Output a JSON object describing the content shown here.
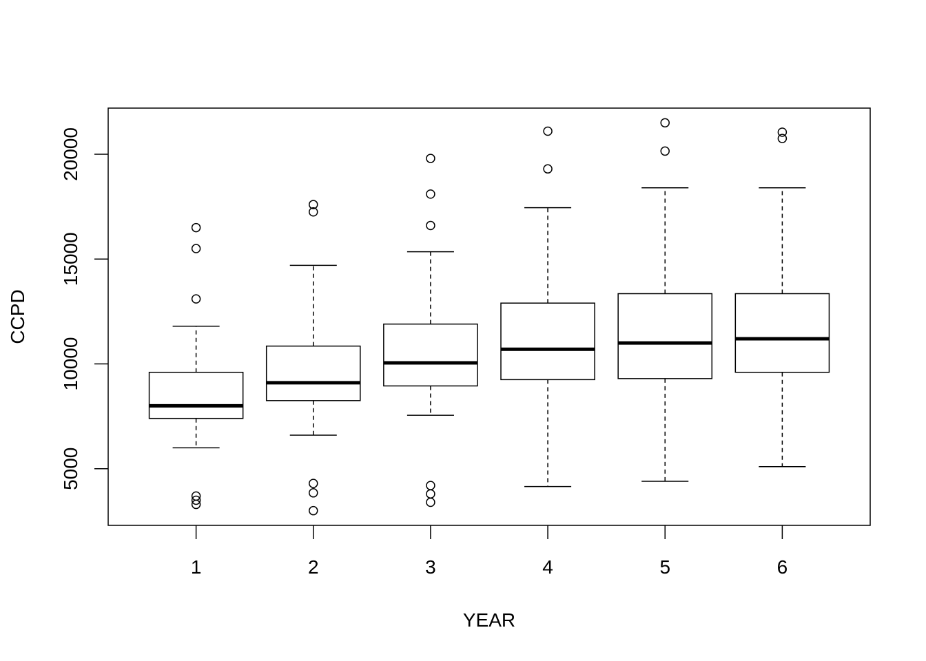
{
  "chart_data": {
    "type": "boxplot",
    "title": "",
    "xlabel": "YEAR",
    "ylabel": "CCPD",
    "categories": [
      "1",
      "2",
      "3",
      "4",
      "5",
      "6"
    ],
    "ylim": [
      2300,
      22200
    ],
    "yticks": [
      5000,
      10000,
      15000,
      20000
    ],
    "grid": false,
    "boxes": [
      {
        "category": "1",
        "whisker_low": 6000,
        "q1": 7400,
        "median": 8000,
        "q3": 9600,
        "whisker_high": 11800,
        "outliers": [
          16500,
          15500,
          13100,
          3700,
          3500,
          3300
        ]
      },
      {
        "category": "2",
        "whisker_low": 6600,
        "q1": 8250,
        "median": 9100,
        "q3": 10850,
        "whisker_high": 14700,
        "outliers": [
          17600,
          17250,
          4300,
          3850,
          3000
        ]
      },
      {
        "category": "3",
        "whisker_low": 7550,
        "q1": 8950,
        "median": 10050,
        "q3": 11900,
        "whisker_high": 15350,
        "outliers": [
          19800,
          18100,
          16600,
          4200,
          3800,
          3400
        ]
      },
      {
        "category": "4",
        "whisker_low": 4150,
        "q1": 9250,
        "median": 10700,
        "q3": 12900,
        "whisker_high": 17450,
        "outliers": [
          21100,
          19300
        ]
      },
      {
        "category": "5",
        "whisker_low": 4400,
        "q1": 9300,
        "median": 11000,
        "q3": 13350,
        "whisker_high": 18400,
        "outliers": [
          21500,
          20150
        ]
      },
      {
        "category": "6",
        "whisker_low": 5100,
        "q1": 9600,
        "median": 11200,
        "q3": 13350,
        "whisker_high": 18400,
        "outliers": [
          21050,
          20750
        ]
      }
    ]
  }
}
